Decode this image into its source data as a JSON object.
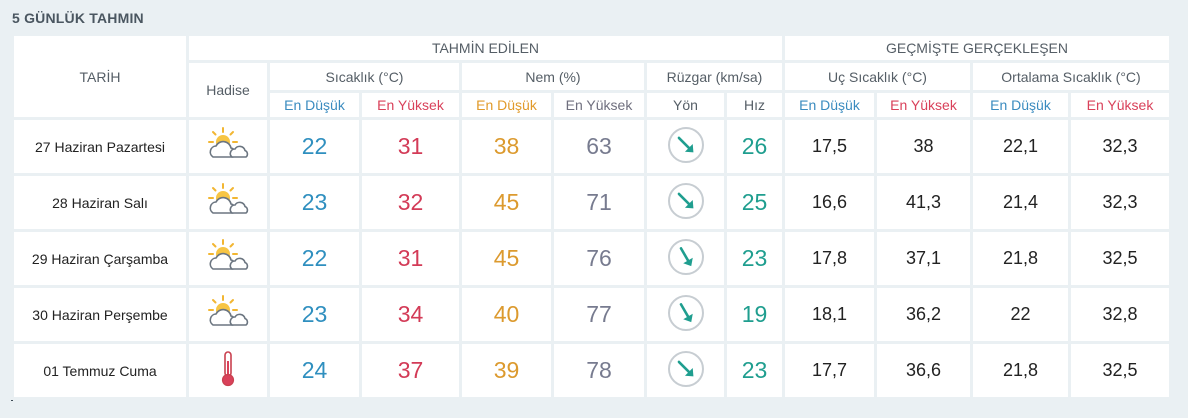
{
  "page_title": "5 GÜNLÜK TAHMIN",
  "header": {
    "date_col": "TARİH",
    "forecast_group": "TAHMİN EDİLEN",
    "history_group": "GEÇMİŞTE GERÇEKLEŞEN",
    "phenomenon": "Hadise",
    "temperature": "Sıcaklık (°C)",
    "humidity": "Nem (%)",
    "wind": "Rüzgar (km/sa)",
    "extreme_temp": "Uç Sıcaklık (°C)",
    "avg_temp": "Ortalama Sıcaklık (°C)",
    "low": "En Düşük",
    "high": "En Yüksek",
    "direction": "Yön",
    "speed": "Hız"
  },
  "colors": {
    "low_blue": "#2f8fbf",
    "high_red": "#d33b57",
    "humidity_low": "#dc9a2e",
    "humidity_high": "#777b8f",
    "wind_teal": "#1f9e8f"
  },
  "rows": [
    {
      "date": "27 Haziran Pazartesi",
      "icon": "partly-sunny-icon",
      "t_low": "22",
      "t_high": "31",
      "h_low": "38",
      "h_high": "63",
      "wind_dir": "northwest-wind-arrow-icon",
      "wind_speed": "26",
      "ext_low": "17,5",
      "ext_high": "38",
      "avg_low": "22,1",
      "avg_high": "32,3"
    },
    {
      "date": "28 Haziran Salı",
      "icon": "partly-sunny-icon",
      "t_low": "23",
      "t_high": "32",
      "h_low": "45",
      "h_high": "71",
      "wind_dir": "northwest-wind-arrow-icon",
      "wind_speed": "25",
      "ext_low": "16,6",
      "ext_high": "41,3",
      "avg_low": "21,4",
      "avg_high": "32,3"
    },
    {
      "date": "29 Haziran Çarşamba",
      "icon": "partly-sunny-icon",
      "t_low": "22",
      "t_high": "31",
      "h_low": "45",
      "h_high": "76",
      "wind_dir": "north-northwest-wind-arrow-icon",
      "wind_speed": "23",
      "ext_low": "17,8",
      "ext_high": "37,1",
      "avg_low": "21,8",
      "avg_high": "32,5"
    },
    {
      "date": "30 Haziran Perşembe",
      "icon": "partly-sunny-icon",
      "t_low": "23",
      "t_high": "34",
      "h_low": "40",
      "h_high": "77",
      "wind_dir": "north-northwest-wind-arrow-icon",
      "wind_speed": "19",
      "ext_low": "18,1",
      "ext_high": "36,2",
      "avg_low": "22",
      "avg_high": "32,8"
    },
    {
      "date": "01 Temmuz Cuma",
      "icon": "thermometer-hot-icon",
      "t_low": "24",
      "t_high": "37",
      "h_low": "39",
      "h_high": "78",
      "wind_dir": "northwest-wind-arrow-icon",
      "wind_speed": "23",
      "ext_low": "17,7",
      "ext_high": "36,6",
      "avg_low": "21,8",
      "avg_high": "32,5"
    }
  ]
}
